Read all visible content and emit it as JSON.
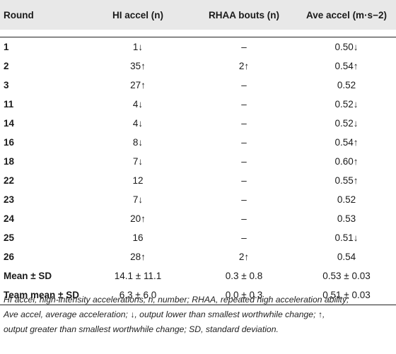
{
  "table": {
    "headers": [
      "Round",
      "HI accel (n)",
      "RHAA bouts (n)",
      "Ave accel (m·s−2)"
    ],
    "rows": [
      [
        "1",
        "1↓",
        "–",
        "0.50↓"
      ],
      [
        "2",
        "35↑",
        "2↑",
        "0.54↑"
      ],
      [
        "3",
        "27↑",
        "–",
        "0.52"
      ],
      [
        "11",
        "4↓",
        "–",
        "0.52↓"
      ],
      [
        "14",
        "4↓",
        "–",
        "0.52↓"
      ],
      [
        "16",
        "8↓",
        "–",
        "0.54↑"
      ],
      [
        "18",
        "7↓",
        "–",
        "0.60↑"
      ],
      [
        "22",
        "12",
        "–",
        "0.55↑"
      ],
      [
        "23",
        "7↓",
        "–",
        "0.52"
      ],
      [
        "24",
        "20↑",
        "–",
        "0.53"
      ],
      [
        "25",
        "16",
        "–",
        "0.51↓"
      ],
      [
        "26",
        "28↑",
        "2↑",
        "0.54"
      ],
      [
        "Mean ± SD",
        "14.1 ± 11.1",
        "0.3 ± 0.8",
        "0.53 ± 0.03"
      ],
      [
        "Team mean ± SD",
        "6.3 ± 6.0",
        "0.0 ± 0.3",
        "0.51 ± 0.03"
      ]
    ]
  },
  "footnote": {
    "line1": "HI accel, high-intensity accelerations; n, number; RHAA, repeated high acceleration ability;",
    "line2": "Ave accel, average acceleration; ↓, output lower than smallest worthwhile change; ↑,",
    "line3": "output greater than smallest worthwhile change; SD, standard deviation."
  }
}
